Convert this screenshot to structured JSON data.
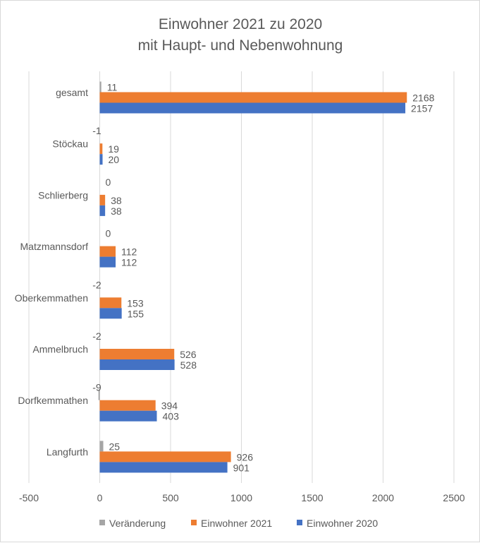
{
  "chart_data": {
    "type": "bar",
    "orientation": "horizontal",
    "title": [
      "Einwohner 2021 zu 2020",
      "mit Haupt- und Nebenwohnung"
    ],
    "categories": [
      "gesamt",
      "Stöckau",
      "Schlierberg",
      "Matzmannsdorf",
      "Oberkemmathen",
      "Ammelbruch",
      "Dorfkemmathen",
      "Langfurth"
    ],
    "series": [
      {
        "name": "Veränderung",
        "color": "#A5A5A5",
        "values": [
          11,
          -1,
          0,
          0,
          -2,
          -2,
          -9,
          25
        ]
      },
      {
        "name": "Einwohner 2021",
        "color": "#ED7D31",
        "values": [
          2168,
          19,
          38,
          112,
          153,
          526,
          394,
          926
        ]
      },
      {
        "name": "Einwohner 2020",
        "color": "#4472C4",
        "values": [
          2157,
          20,
          38,
          112,
          155,
          528,
          403,
          901
        ]
      }
    ],
    "xlim": [
      -500,
      2500
    ],
    "xticks": [
      "-500",
      "0",
      "500",
      "1000",
      "1500",
      "2000",
      "2500"
    ],
    "grid": true,
    "legend": "bottom"
  }
}
